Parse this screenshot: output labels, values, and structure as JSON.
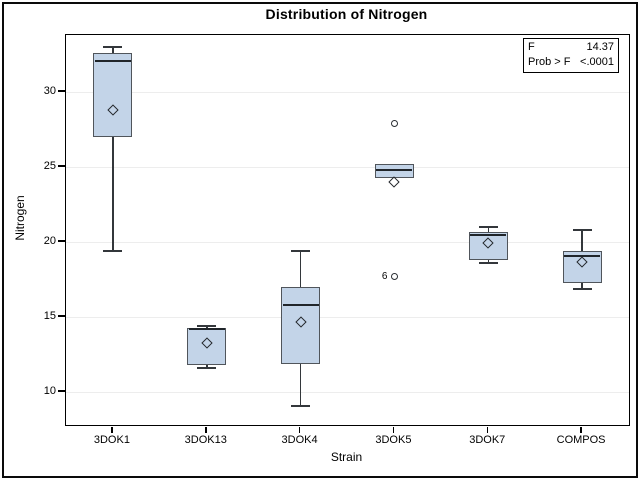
{
  "title": "Distribution of Nitrogen",
  "stat_box": {
    "rows": [
      {
        "label": "F",
        "value": "14.37"
      },
      {
        "label": "Prob > F",
        "value": "<.0001"
      }
    ]
  },
  "chart_data": {
    "type": "box",
    "title": "Distribution of Nitrogen",
    "xlabel": "Strain",
    "ylabel": "Nitrogen",
    "categories": [
      "3DOK1",
      "3DOK13",
      "3DOK4",
      "3DOK5",
      "3DOK7",
      "COMPOS"
    ],
    "y_axis": {
      "min": 7.8,
      "max": 33.8,
      "ticks": [
        10,
        15,
        20,
        25,
        30
      ],
      "grid": true
    },
    "legend_position": "none",
    "groups": [
      {
        "name": "3DOK1",
        "whisker_low": 19.4,
        "q1": 27.0,
        "median": 32.1,
        "q3": 32.6,
        "whisker_high": 33.0,
        "mean": 28.82,
        "outliers": []
      },
      {
        "name": "3DOK13",
        "whisker_low": 11.6,
        "q1": 11.8,
        "median": 14.2,
        "q3": 14.3,
        "whisker_high": 14.4,
        "mean": 13.26,
        "outliers": []
      },
      {
        "name": "3DOK4",
        "whisker_low": 9.1,
        "q1": 11.9,
        "median": 15.8,
        "q3": 17.0,
        "whisker_high": 19.4,
        "mean": 14.64,
        "outliers": []
      },
      {
        "name": "3DOK5",
        "whisker_low": 24.3,
        "q1": 24.3,
        "median": 24.8,
        "q3": 25.2,
        "whisker_high": 25.2,
        "mean": 23.98,
        "outliers": [
          {
            "value": 27.9,
            "label": ""
          },
          {
            "value": 17.7,
            "label": "6"
          }
        ]
      },
      {
        "name": "3DOK7",
        "whisker_low": 18.6,
        "q1": 18.8,
        "median": 20.5,
        "q3": 20.7,
        "whisker_high": 21.0,
        "mean": 19.92,
        "outliers": []
      },
      {
        "name": "COMPOS",
        "whisker_low": 16.9,
        "q1": 17.3,
        "median": 19.1,
        "q3": 19.4,
        "whisker_high": 20.8,
        "mean": 18.7,
        "outliers": []
      }
    ]
  },
  "colors": {
    "box_fill": "#c3d4e8",
    "box_border": "#50555b",
    "median": "#20252a",
    "whisker": "#33373b",
    "mean_marker": "#23272b",
    "outlier": "#2b2f34",
    "grid": "#ededed",
    "frame": "#000000"
  }
}
